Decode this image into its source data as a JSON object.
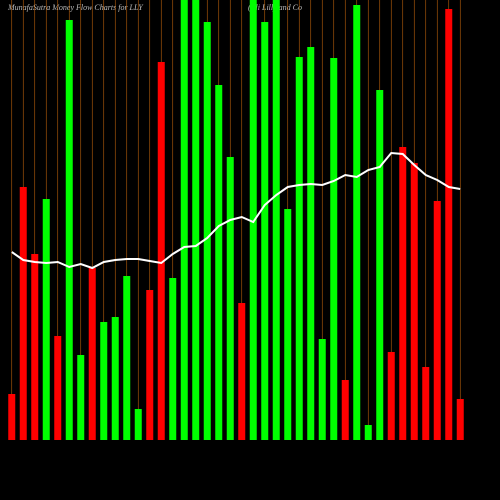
{
  "chart_data": {
    "type": "bar",
    "title": "MunafaSutra  Money Flow  Charts for LLY",
    "subtitle": "(Eli Lilly and Co",
    "ylim": [
      0,
      440
    ],
    "grid": true,
    "grid_color": "#b8600a",
    "line_color": "#ffffff",
    "series": [
      {
        "name": "Money flow",
        "values": [
          46,
          253,
          186,
          241,
          104,
          420,
          85,
          172,
          118,
          123,
          164,
          31,
          150,
          378,
          162,
          440,
          440,
          418,
          355,
          283,
          137,
          440,
          418,
          440,
          231,
          383,
          393,
          101,
          382,
          60,
          435,
          15,
          350,
          88,
          293,
          277,
          73,
          239,
          431,
          41
        ],
        "colors": [
          "#ff0000",
          "#ff0000",
          "#ff0000",
          "#00ff00",
          "#ff0000",
          "#00ff00",
          "#00ff00",
          "#ff0000",
          "#00ff00",
          "#00ff00",
          "#00ff00",
          "#00ff00",
          "#ff0000",
          "#ff0000",
          "#00ff00",
          "#00ff00",
          "#00ff00",
          "#00ff00",
          "#00ff00",
          "#00ff00",
          "#ff0000",
          "#00ff00",
          "#00ff00",
          "#00ff00",
          "#00ff00",
          "#00ff00",
          "#00ff00",
          "#00ff00",
          "#00ff00",
          "#ff0000",
          "#00ff00",
          "#00ff00",
          "#00ff00",
          "#ff0000",
          "#ff0000",
          "#ff0000",
          "#ff0000",
          "#ff0000",
          "#ff0000",
          "#ff0000"
        ]
      },
      {
        "name": "Price",
        "type": "line",
        "values": [
          188,
          180,
          178,
          177,
          178,
          173,
          176,
          172,
          178,
          180,
          181,
          181,
          179,
          177,
          186,
          193,
          194,
          202,
          214,
          220,
          223,
          218,
          235,
          245,
          253,
          255,
          256,
          255,
          259,
          265,
          263,
          270,
          273,
          287,
          286,
          275,
          265,
          260,
          253,
          251
        ]
      }
    ]
  }
}
